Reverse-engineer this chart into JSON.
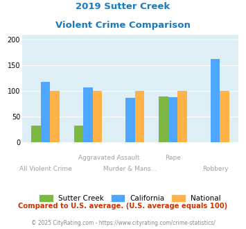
{
  "title_line1": "2019 Sutter Creek",
  "title_line2": "Violent Crime Comparison",
  "sutter_creek": [
    32,
    32,
    0,
    89,
    0
  ],
  "california": [
    117,
    107,
    86,
    87,
    162
  ],
  "national": [
    100,
    100,
    100,
    100,
    100
  ],
  "bar_color_sutter": "#7db843",
  "bar_color_california": "#4da6ff",
  "bar_color_national": "#ffb347",
  "title_color": "#1a7abf",
  "background_color": "#ddeef5",
  "ylabel_vals": [
    0,
    50,
    100,
    150,
    200
  ],
  "ylim": [
    0,
    210
  ],
  "footnote": "Compared to U.S. average. (U.S. average equals 100)",
  "copyright": "© 2025 CityRating.com - https://www.cityrating.com/crime-statistics/",
  "legend_labels": [
    "Sutter Creek",
    "California",
    "National"
  ],
  "top_labels": [
    [
      "Aggravated Assault",
      1.5
    ],
    [
      "Rape",
      3
    ]
  ],
  "bottom_labels": [
    [
      "All Violent Crime",
      0
    ],
    [
      "Murder & Mans...",
      2
    ],
    [
      "Robbery",
      4
    ]
  ]
}
